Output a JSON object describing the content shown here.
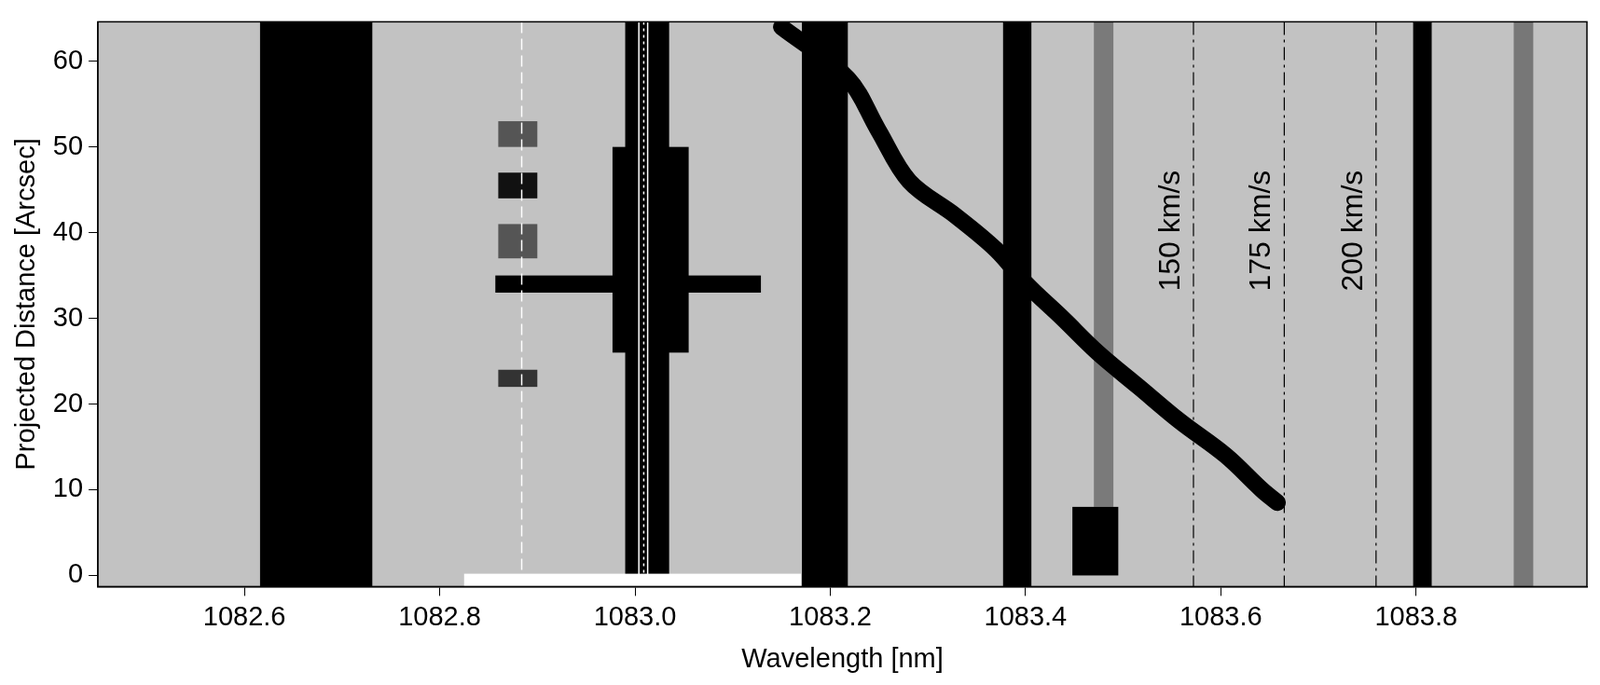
{
  "chart_data": {
    "type": "line",
    "xlabel": "Wavelength [nm]",
    "ylabel": "Projected Distance [Arcsec]",
    "xlim": [
      1082.45,
      1083.975
    ],
    "ylim": [
      -1.3,
      64.6
    ],
    "xticks": [
      1082.6,
      1082.8,
      {
        "value": 1083.0,
        "label": "1083.0"
      },
      1083.2,
      1083.4,
      1083.6,
      1083.8
    ],
    "yticks": [
      0,
      10,
      20,
      30,
      40,
      50,
      60
    ],
    "grid": false,
    "tick_labels": true,
    "series": [
      {
        "color": "#000000",
        "line_style": "solid",
        "x": [
          1083.15,
          1083.218,
          1083.249,
          1083.281,
          1083.328,
          1083.37,
          1083.401,
          1083.438,
          1083.474,
          1083.516,
          1083.558,
          1083.605,
          1083.642,
          1083.658
        ],
        "values": [
          64.0,
          58.0,
          52.0,
          46.0,
          42.0,
          38.0,
          34.0,
          30.0,
          26.0,
          22.0,
          18.0,
          14.0,
          10.0,
          8.5
        ]
      }
    ],
    "bands": [
      {
        "x": [
          1082.616,
          1082.731
        ],
        "y": [
          -1.3,
          64.6
        ],
        "color": "#000000"
      },
      {
        "x": [
          1082.99,
          1083.035
        ],
        "y": [
          -1.3,
          64.6
        ],
        "color": "#000000"
      },
      {
        "x": [
          1082.977,
          1083.055
        ],
        "y": [
          26,
          50
        ],
        "color": "#000000"
      },
      {
        "x": [
          1082.857,
          1083.129
        ],
        "y": [
          33,
          35
        ],
        "color": "#000000"
      },
      {
        "x": [
          1082.86,
          1082.9
        ],
        "y": [
          44,
          47
        ],
        "color": "#111111"
      },
      {
        "x": [
          1082.86,
          1082.9
        ],
        "y": [
          22,
          24
        ],
        "color": "#333333"
      },
      {
        "x": [
          1082.86,
          1082.9
        ],
        "y": [
          37,
          41
        ],
        "color": "#555555"
      },
      {
        "x": [
          1082.86,
          1082.9
        ],
        "y": [
          50,
          53
        ],
        "color": "#555555"
      },
      {
        "x": [
          1083.171,
          1083.218
        ],
        "y": [
          -1.3,
          64.6
        ],
        "color": "#000000"
      },
      {
        "x": [
          1083.377,
          1083.406
        ],
        "y": [
          -1.3,
          64.6
        ],
        "color": "#000000"
      },
      {
        "x": [
          1083.47,
          1083.49
        ],
        "y": [
          8,
          64.6
        ],
        "color": "#7a7a7a"
      },
      {
        "x": [
          1083.448,
          1083.495
        ],
        "y": [
          0,
          8
        ],
        "color": "#000000"
      },
      {
        "x": [
          1083.797,
          1083.816
        ],
        "y": [
          -1.3,
          64.6
        ],
        "color": "#000000"
      },
      {
        "x": [
          1083.9,
          1083.92
        ],
        "y": [
          -1.3,
          64.6
        ],
        "color": "#777777"
      },
      {
        "x": [
          1082.825,
          1083.17
        ],
        "y": [
          -1.3,
          0.2
        ],
        "color": "#ffffff"
      }
    ],
    "reference_lines": [
      {
        "x": 1082.884,
        "line_style": "dashed",
        "color": "#ffffff"
      },
      {
        "x": 1083.004,
        "line_style": "solid",
        "color": "#ffffff"
      },
      {
        "x": 1083.009,
        "line_style": "dotted",
        "color": "#ffffff"
      },
      {
        "x": 1083.013,
        "line_style": "solid",
        "color": "#ffffff"
      }
    ],
    "annotations": [
      {
        "text": "150 km/s",
        "x": 1083.572
      },
      {
        "text": "175 km/s",
        "x": 1083.665
      },
      {
        "text": "200 km/s",
        "x": 1083.759
      }
    ]
  }
}
